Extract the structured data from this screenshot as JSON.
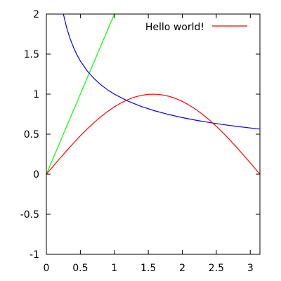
{
  "chart_data": {
    "type": "line",
    "title": "",
    "xlabel": "",
    "ylabel": "",
    "xlim": [
      0,
      3.14159
    ],
    "ylim": [
      -1,
      2
    ],
    "xticks": [
      0,
      0.5,
      1,
      1.5,
      2,
      2.5,
      3
    ],
    "xtick_labels": [
      "0",
      "0.5",
      "1",
      "1.5",
      "2",
      "2.5",
      "3"
    ],
    "yticks": [
      -1,
      -0.5,
      0,
      0.5,
      1,
      1.5,
      2
    ],
    "ytick_labels": [
      "-1",
      "-0.5",
      "0",
      "0.5",
      "1",
      "1.5",
      "2"
    ],
    "grid": false,
    "legend_position": "top-right",
    "series": [
      {
        "name": "Hello world!",
        "color": "#ff0000",
        "x": [
          0,
          0.1,
          0.2,
          0.3,
          0.4,
          0.5,
          0.6,
          0.7,
          0.8,
          0.9,
          1.0,
          1.1,
          1.2,
          1.3,
          1.4,
          1.5,
          1.6,
          1.7,
          1.8,
          1.9,
          2.0,
          2.1,
          2.2,
          2.3,
          2.4,
          2.5,
          2.6,
          2.7,
          2.8,
          2.9,
          3.0,
          3.1,
          3.14159
        ],
        "y": [
          0,
          0.0998,
          0.1987,
          0.2955,
          0.3894,
          0.4794,
          0.5646,
          0.6442,
          0.7174,
          0.7833,
          0.8415,
          0.8912,
          0.932,
          0.9636,
          0.9854,
          0.9975,
          0.9996,
          0.9917,
          0.9738,
          0.9463,
          0.9093,
          0.8632,
          0.8085,
          0.7457,
          0.6755,
          0.5985,
          0.5155,
          0.4274,
          0.335,
          0.2392,
          0.1411,
          0.0416,
          0
        ]
      },
      {
        "color": "#0000ff",
        "x": [
          0.25,
          0.3,
          0.35,
          0.4,
          0.45,
          0.5,
          0.6,
          0.7,
          0.8,
          0.9,
          1.0,
          1.2,
          1.4,
          1.6,
          1.8,
          2.0,
          2.2,
          2.4,
          2.6,
          2.8,
          3.0,
          3.14159
        ],
        "y": [
          2.0,
          1.8257,
          1.6903,
          1.5811,
          1.4907,
          1.4142,
          1.291,
          1.1952,
          1.118,
          1.0541,
          1.0,
          0.9129,
          0.8452,
          0.7906,
          0.7454,
          0.7071,
          0.6742,
          0.6455,
          0.6202,
          0.5976,
          0.5774,
          0.5642
        ]
      },
      {
        "color": "#00ff00",
        "x": [
          0,
          1.0
        ],
        "y": [
          0,
          2.0
        ]
      }
    ]
  }
}
